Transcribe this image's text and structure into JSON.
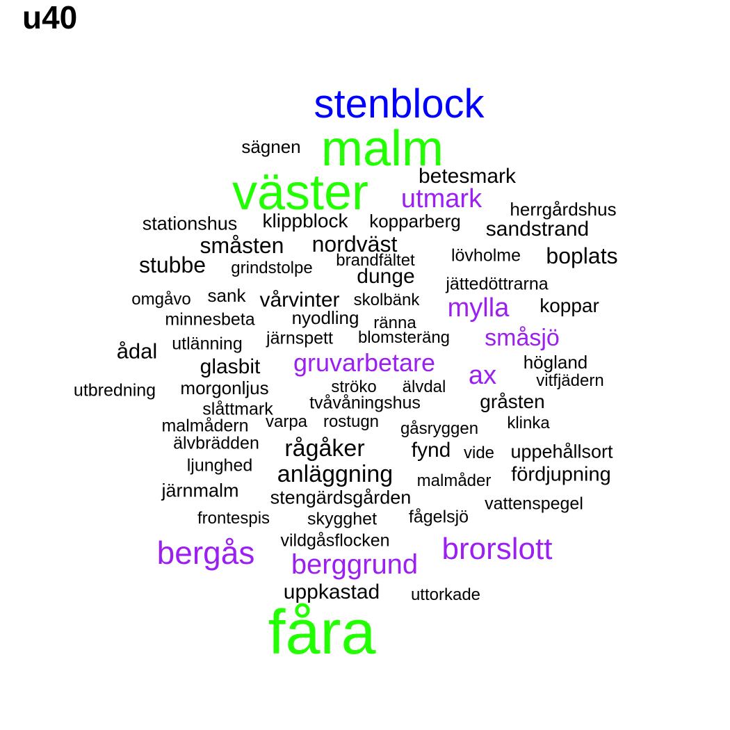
{
  "title": "u40",
  "colors": {
    "blue": "#0000ff",
    "green": "#22ff00",
    "purple": "#9b1ff0",
    "black": "#000000"
  },
  "words": [
    {
      "text": "stenblock",
      "color": "blue"
    },
    {
      "text": "malm",
      "color": "green"
    },
    {
      "text": "väster",
      "color": "green"
    },
    {
      "text": "fåra",
      "color": "green"
    },
    {
      "text": "utmark",
      "color": "purple"
    },
    {
      "text": "mylla",
      "color": "purple"
    },
    {
      "text": "småsjö",
      "color": "purple"
    },
    {
      "text": "gruvarbetare",
      "color": "purple"
    },
    {
      "text": "ax",
      "color": "purple"
    },
    {
      "text": "bergås",
      "color": "purple"
    },
    {
      "text": "brorslott",
      "color": "purple"
    },
    {
      "text": "berggrund",
      "color": "purple"
    },
    {
      "text": "sägnen",
      "color": "black"
    },
    {
      "text": "betesmark",
      "color": "black"
    },
    {
      "text": "herrgårdshus",
      "color": "black"
    },
    {
      "text": "stationshus",
      "color": "black"
    },
    {
      "text": "klippblock",
      "color": "black"
    },
    {
      "text": "kopparberg",
      "color": "black"
    },
    {
      "text": "sandstrand",
      "color": "black"
    },
    {
      "text": "småsten",
      "color": "black"
    },
    {
      "text": "nordväst",
      "color": "black"
    },
    {
      "text": "stubbe",
      "color": "black"
    },
    {
      "text": "grindstolpe",
      "color": "black"
    },
    {
      "text": "brandfältet",
      "color": "black"
    },
    {
      "text": "lövholme",
      "color": "black"
    },
    {
      "text": "boplats",
      "color": "black"
    },
    {
      "text": "dunge",
      "color": "black"
    },
    {
      "text": "jättedöttrarna",
      "color": "black"
    },
    {
      "text": "omgåvo",
      "color": "black"
    },
    {
      "text": "sank",
      "color": "black"
    },
    {
      "text": "vårvinter",
      "color": "black"
    },
    {
      "text": "skolbänk",
      "color": "black"
    },
    {
      "text": "koppar",
      "color": "black"
    },
    {
      "text": "minnesbeta",
      "color": "black"
    },
    {
      "text": "nyodling",
      "color": "black"
    },
    {
      "text": "ränna",
      "color": "black"
    },
    {
      "text": "ådal",
      "color": "black"
    },
    {
      "text": "utlänning",
      "color": "black"
    },
    {
      "text": "järnspett",
      "color": "black"
    },
    {
      "text": "blomsteräng",
      "color": "black"
    },
    {
      "text": "glasbit",
      "color": "black"
    },
    {
      "text": "högland",
      "color": "black"
    },
    {
      "text": "vitfjädern",
      "color": "black"
    },
    {
      "text": "utbredning",
      "color": "black"
    },
    {
      "text": "morgonljus",
      "color": "black"
    },
    {
      "text": "ströko",
      "color": "black"
    },
    {
      "text": "älvdal",
      "color": "black"
    },
    {
      "text": "gråsten",
      "color": "black"
    },
    {
      "text": "tvåvåningshus",
      "color": "black"
    },
    {
      "text": "slåttmark",
      "color": "black"
    },
    {
      "text": "malmådern",
      "color": "black"
    },
    {
      "text": "varpa",
      "color": "black"
    },
    {
      "text": "rostugn",
      "color": "black"
    },
    {
      "text": "gåsryggen",
      "color": "black"
    },
    {
      "text": "klinka",
      "color": "black"
    },
    {
      "text": "älvbrädden",
      "color": "black"
    },
    {
      "text": "rågåker",
      "color": "black"
    },
    {
      "text": "fynd",
      "color": "black"
    },
    {
      "text": "vide",
      "color": "black"
    },
    {
      "text": "uppehållsort",
      "color": "black"
    },
    {
      "text": "ljunghed",
      "color": "black"
    },
    {
      "text": "anläggning",
      "color": "black"
    },
    {
      "text": "malmåder",
      "color": "black"
    },
    {
      "text": "fördjupning",
      "color": "black"
    },
    {
      "text": "järnmalm",
      "color": "black"
    },
    {
      "text": "stengärdsgården",
      "color": "black"
    },
    {
      "text": "vattenspegel",
      "color": "black"
    },
    {
      "text": "frontespis",
      "color": "black"
    },
    {
      "text": "skygghet",
      "color": "black"
    },
    {
      "text": "fågelsjö",
      "color": "black"
    },
    {
      "text": "vildgåsflocken",
      "color": "black"
    },
    {
      "text": "uppkastad",
      "color": "black"
    },
    {
      "text": "uttorkade",
      "color": "black"
    }
  ]
}
